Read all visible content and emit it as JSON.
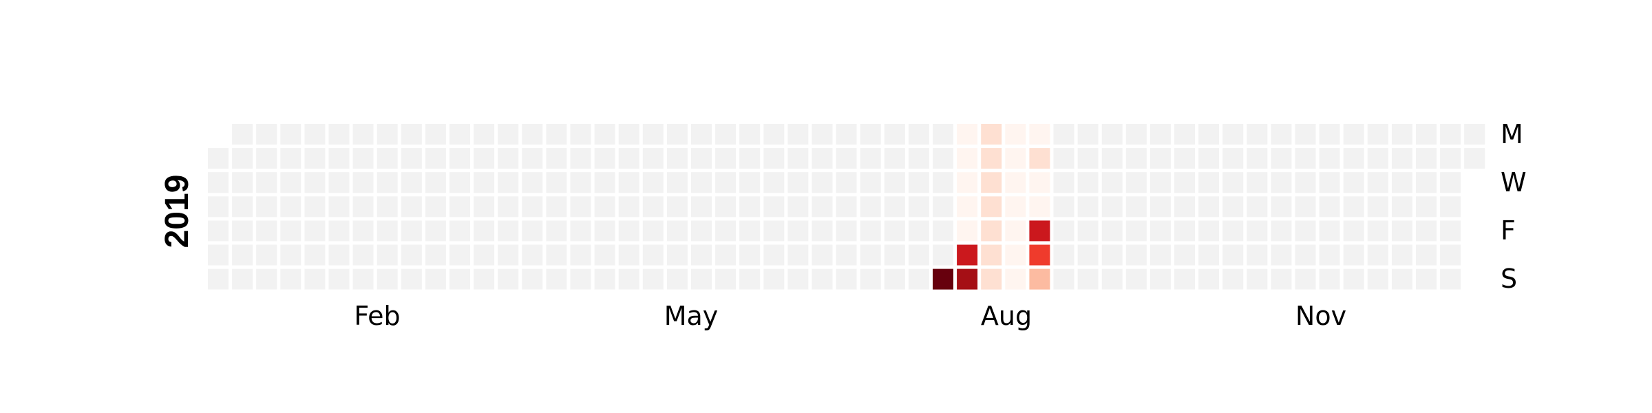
{
  "chart_data": {
    "type": "heatmap",
    "title": "",
    "year_label": "2019",
    "month_labels": [
      "Feb",
      "May",
      "Aug",
      "Nov"
    ],
    "weekday_labels": [
      "M",
      "W",
      "F",
      "S"
    ],
    "grid": {
      "weeks": 53,
      "rows": 7
    },
    "colors": {
      "empty": "#f2f2f2",
      "scale": [
        "#fff5f0",
        "#fee0d2",
        "#fcbba1",
        "#fc9272",
        "#fb6a4a",
        "#ef3b2c",
        "#cb181d",
        "#a50f15",
        "#67000d"
      ]
    },
    "nonzero_cells": [
      {
        "date": "2019-08-04",
        "value": 1.0
      },
      {
        "date": "2019-08-05",
        "value": 0.05
      },
      {
        "date": "2019-08-06",
        "value": 0.05
      },
      {
        "date": "2019-08-07",
        "value": 0.05
      },
      {
        "date": "2019-08-08",
        "value": 0.05
      },
      {
        "date": "2019-08-09",
        "value": 0.05
      },
      {
        "date": "2019-08-10",
        "value": 0.75
      },
      {
        "date": "2019-08-11",
        "value": 0.85
      },
      {
        "date": "2019-08-12",
        "value": 0.08
      },
      {
        "date": "2019-08-13",
        "value": 0.08
      },
      {
        "date": "2019-08-14",
        "value": 0.08
      },
      {
        "date": "2019-08-15",
        "value": 0.08
      },
      {
        "date": "2019-08-16",
        "value": 0.08
      },
      {
        "date": "2019-08-17",
        "value": 0.08
      },
      {
        "date": "2019-08-18",
        "value": 0.08
      },
      {
        "date": "2019-08-19",
        "value": 0.05
      },
      {
        "date": "2019-08-20",
        "value": 0.05
      },
      {
        "date": "2019-08-21",
        "value": 0.05
      },
      {
        "date": "2019-08-22",
        "value": 0.05
      },
      {
        "date": "2019-08-23",
        "value": 0.05
      },
      {
        "date": "2019-08-24",
        "value": 0.05
      },
      {
        "date": "2019-08-25",
        "value": 0.05
      },
      {
        "date": "2019-08-26",
        "value": 0.05
      },
      {
        "date": "2019-08-27",
        "value": 0.12
      },
      {
        "date": "2019-08-28",
        "value": 0.05
      },
      {
        "date": "2019-08-29",
        "value": 0.05
      },
      {
        "date": "2019-08-30",
        "value": 0.72
      },
      {
        "date": "2019-08-31",
        "value": 0.68
      },
      {
        "date": "2019-09-01",
        "value": 0.25
      }
    ]
  }
}
